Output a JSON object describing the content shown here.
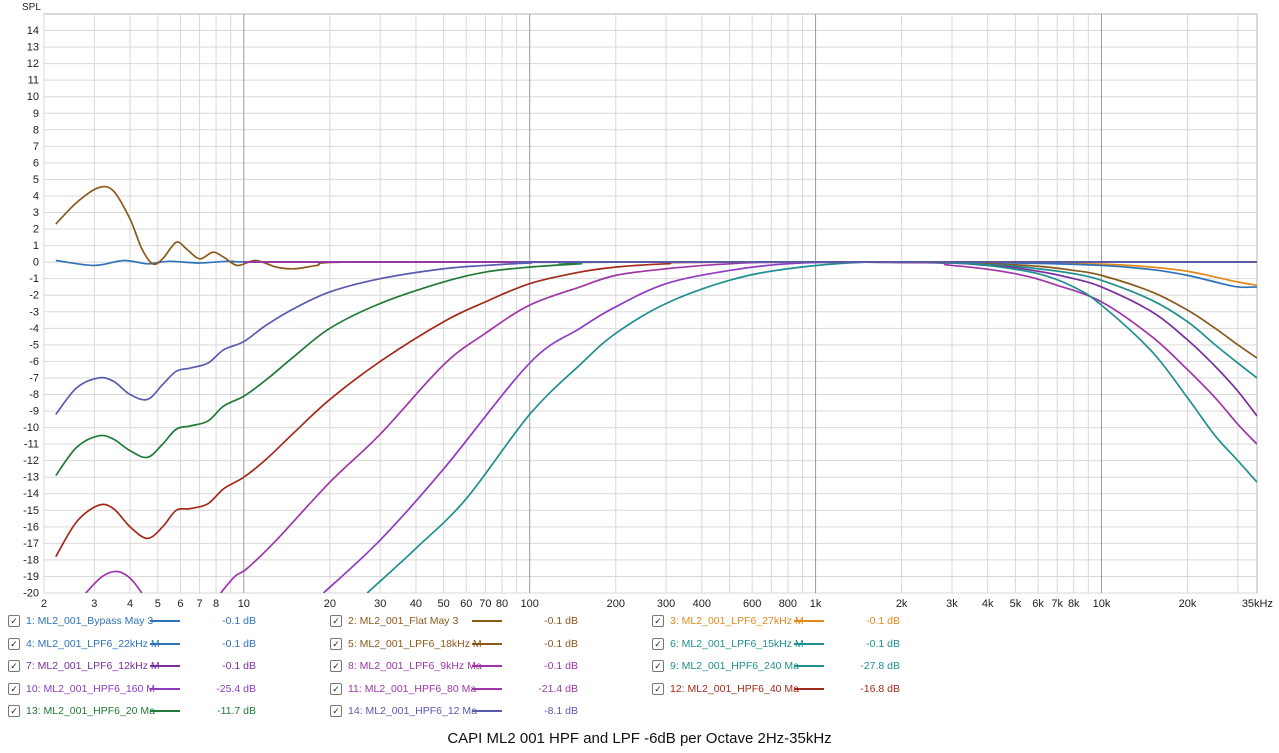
{
  "chart_data": {
    "type": "line",
    "title": "CAPI ML2 001 HPF and LPF -6dB per Octave 2Hz-35kHz",
    "ylabel": "SPL",
    "xlabel": "",
    "xscale": "log",
    "xlim": [
      2,
      35000
    ],
    "ylim": [
      -20,
      15
    ],
    "grid": true,
    "legend_placement": "bottom",
    "y_ticks": [
      "14",
      "13",
      "12",
      "11",
      "10",
      "9",
      "8",
      "7",
      "6",
      "5",
      "4",
      "3",
      "2",
      "1",
      "0",
      "-1",
      "-2",
      "-3",
      "-4",
      "-5",
      "-6",
      "-7",
      "-8",
      "-9",
      "-10",
      "-11",
      "-12",
      "-13",
      "-14",
      "-15",
      "-16",
      "-17",
      "-18",
      "-19",
      "-20"
    ],
    "x_ticks": [
      {
        "v": 2,
        "label": "2"
      },
      {
        "v": 3,
        "label": "3"
      },
      {
        "v": 4,
        "label": "4"
      },
      {
        "v": 5,
        "label": "5"
      },
      {
        "v": 6,
        "label": "6"
      },
      {
        "v": 7,
        "label": "7"
      },
      {
        "v": 8,
        "label": "8"
      },
      {
        "v": 10,
        "label": "10"
      },
      {
        "v": 20,
        "label": "20"
      },
      {
        "v": 30,
        "label": "30"
      },
      {
        "v": 40,
        "label": "40"
      },
      {
        "v": 50,
        "label": "50"
      },
      {
        "v": 60,
        "label": "60"
      },
      {
        "v": 70,
        "label": "70"
      },
      {
        "v": 80,
        "label": "80"
      },
      {
        "v": 100,
        "label": "100"
      },
      {
        "v": 200,
        "label": "200"
      },
      {
        "v": 300,
        "label": "300"
      },
      {
        "v": 400,
        "label": "400"
      },
      {
        "v": 600,
        "label": "600"
      },
      {
        "v": 800,
        "label": "800"
      },
      {
        "v": 1000,
        "label": "1k"
      },
      {
        "v": 2000,
        "label": "2k"
      },
      {
        "v": 3000,
        "label": "3k"
      },
      {
        "v": 4000,
        "label": "4k"
      },
      {
        "v": 5000,
        "label": "5k"
      },
      {
        "v": 6000,
        "label": "6k"
      },
      {
        "v": 7000,
        "label": "7k"
      },
      {
        "v": 8000,
        "label": "8k"
      },
      {
        "v": 10000,
        "label": "10k"
      },
      {
        "v": 20000,
        "label": "20k"
      },
      {
        "v": 35000,
        "label": "35kHz"
      }
    ],
    "series": [
      {
        "name": "1: ML2_001_Bypass May 3",
        "value_label": "-0.1 dB",
        "color": "#2f72b8",
        "points": [
          [
            2.2,
            0.1
          ],
          [
            3,
            -0.2
          ],
          [
            3.8,
            0.1
          ],
          [
            4.6,
            -0.1
          ],
          [
            5.5,
            0.05
          ],
          [
            7,
            -0.05
          ],
          [
            9,
            0.05
          ],
          [
            15,
            0
          ],
          [
            1000,
            0
          ],
          [
            35000,
            0
          ]
        ]
      },
      {
        "name": "2: ML2_001_Flat May 3",
        "value_label": "-0.1 dB",
        "color": "#8a5a1c",
        "points": [
          [
            2.2,
            2.3
          ],
          [
            2.6,
            3.6
          ],
          [
            3.1,
            4.5
          ],
          [
            3.5,
            4.3
          ],
          [
            4,
            2.6
          ],
          [
            4.4,
            0.8
          ],
          [
            4.8,
            -0.1
          ],
          [
            5.2,
            0.2
          ],
          [
            5.8,
            1.2
          ],
          [
            6.3,
            0.8
          ],
          [
            7,
            0.2
          ],
          [
            7.8,
            0.6
          ],
          [
            8.5,
            0.3
          ],
          [
            9.5,
            -0.2
          ],
          [
            11,
            0.1
          ],
          [
            13,
            -0.3
          ],
          [
            15,
            -0.4
          ],
          [
            18,
            -0.2
          ],
          [
            22,
            0
          ],
          [
            100,
            0
          ],
          [
            35000,
            0
          ]
        ]
      },
      {
        "name": "3: ML2_001_LPF6_27kHz M",
        "value_label": "-0.1 dB",
        "color": "#e08a1e",
        "points": [
          [
            10,
            0
          ],
          [
            1500,
            0
          ],
          [
            5000,
            -0.04
          ],
          [
            10000,
            -0.12
          ],
          [
            15000,
            -0.3
          ],
          [
            20000,
            -0.55
          ],
          [
            25000,
            -0.9
          ],
          [
            30000,
            -1.2
          ],
          [
            35000,
            -1.4
          ]
        ]
      },
      {
        "name": "4: ML2_001_LPF6_22kHz M",
        "value_label": "-0.1 dB",
        "color": "#2f72b8",
        "points": [
          [
            10,
            0
          ],
          [
            1500,
            0
          ],
          [
            5000,
            -0.05
          ],
          [
            10000,
            -0.2
          ],
          [
            15000,
            -0.45
          ],
          [
            20000,
            -0.8
          ],
          [
            25000,
            -1.2
          ],
          [
            30000,
            -1.5
          ],
          [
            35000,
            -1.5
          ]
        ]
      },
      {
        "name": "5: ML2_001_LPF6_18kHz M",
        "value_label": "-0.1 dB",
        "color": "#8a5a1c",
        "points": [
          [
            10,
            0
          ],
          [
            1500,
            0
          ],
          [
            4000,
            -0.1
          ],
          [
            6000,
            -0.25
          ],
          [
            8000,
            -0.5
          ],
          [
            10000,
            -0.8
          ],
          [
            15000,
            -1.8
          ],
          [
            20000,
            -2.9
          ],
          [
            25000,
            -4
          ],
          [
            30000,
            -5
          ],
          [
            35000,
            -5.8
          ]
        ]
      },
      {
        "name": "6: ML2_001_LPF6_15kHz M",
        "value_label": "-0.1 dB",
        "color": "#1f8f8f",
        "points": [
          [
            10,
            0
          ],
          [
            1500,
            0
          ],
          [
            4000,
            -0.15
          ],
          [
            6000,
            -0.4
          ],
          [
            8000,
            -0.7
          ],
          [
            10000,
            -1.1
          ],
          [
            15000,
            -2.3
          ],
          [
            20000,
            -3.6
          ],
          [
            25000,
            -5
          ],
          [
            30000,
            -6.1
          ],
          [
            35000,
            -7
          ]
        ]
      },
      {
        "name": "7: ML2_001_LPF6_12kHz M",
        "value_label": "-0.1 dB",
        "color": "#7a2f9e",
        "points": [
          [
            10,
            0
          ],
          [
            1500,
            0
          ],
          [
            4000,
            -0.2
          ],
          [
            6000,
            -0.55
          ],
          [
            8000,
            -1
          ],
          [
            10000,
            -1.5
          ],
          [
            15000,
            -3
          ],
          [
            20000,
            -4.7
          ],
          [
            25000,
            -6.3
          ],
          [
            30000,
            -7.8
          ],
          [
            35000,
            -9.3
          ]
        ]
      },
      {
        "name": "8: ML2_001_LPF6_9kHz Ma",
        "value_label": "-0.1 dB",
        "color": "#a035a8",
        "points": [
          [
            10,
            0
          ],
          [
            1500,
            0
          ],
          [
            3000,
            -0.2
          ],
          [
            5000,
            -0.7
          ],
          [
            7000,
            -1.4
          ],
          [
            10000,
            -2.4
          ],
          [
            15000,
            -4.5
          ],
          [
            20000,
            -6.5
          ],
          [
            25000,
            -8.2
          ],
          [
            30000,
            -9.8
          ],
          [
            35000,
            -11
          ]
        ]
      },
      {
        "name": "9: ML2_001_HPF6_240 Ma",
        "value_label": "-27.8 dB",
        "color": "#1f8f8f",
        "points": [
          [
            27,
            -20
          ],
          [
            40,
            -17.3
          ],
          [
            60,
            -14.3
          ],
          [
            100,
            -9.2
          ],
          [
            150,
            -6.2
          ],
          [
            200,
            -4.3
          ],
          [
            300,
            -2.5
          ],
          [
            500,
            -1.1
          ],
          [
            800,
            -0.4
          ],
          [
            1500,
            0
          ],
          [
            3000,
            -0.05
          ],
          [
            4000,
            -0.2
          ],
          [
            6000,
            -0.7
          ],
          [
            8000,
            -1.5
          ],
          [
            10000,
            -2.6
          ],
          [
            15000,
            -5.4
          ],
          [
            20000,
            -8.2
          ],
          [
            25000,
            -10.5
          ],
          [
            30000,
            -12
          ],
          [
            35000,
            -13.3
          ]
        ]
      },
      {
        "name": "10: ML2_001_HPF6_160 M",
        "value_label": "-25.4 dB",
        "color": "#8e3cc2",
        "points": [
          [
            19,
            -20
          ],
          [
            30,
            -16.8
          ],
          [
            50,
            -12.5
          ],
          [
            100,
            -6.1
          ],
          [
            150,
            -4
          ],
          [
            200,
            -2.7
          ],
          [
            300,
            -1.3
          ],
          [
            500,
            -0.5
          ],
          [
            800,
            -0.1
          ],
          [
            1500,
            0
          ],
          [
            10000,
            0
          ],
          [
            35000,
            0
          ]
        ]
      },
      {
        "name": "11: ML2_001_HPF6_80 Ma",
        "value_label": "-21.4 dB",
        "color": "#a035a8",
        "points": [
          [
            8.3,
            -20
          ],
          [
            9.3,
            -19
          ],
          [
            10.3,
            -18.5
          ],
          [
            13,
            -16.8
          ],
          [
            20,
            -13.3
          ],
          [
            30,
            -10.4
          ],
          [
            50,
            -6.2
          ],
          [
            70,
            -4.3
          ],
          [
            100,
            -2.6
          ],
          [
            150,
            -1.5
          ],
          [
            200,
            -0.8
          ],
          [
            300,
            -0.4
          ],
          [
            500,
            -0.1
          ],
          [
            1000,
            0
          ],
          [
            35000,
            0
          ]
        ]
      },
      {
        "name": "12: ML2_001_HPF6_40 Ma",
        "value_label": "-16.8 dB",
        "color": "#a32a1a",
        "points": [
          [
            2.2,
            -17.8
          ],
          [
            2.6,
            -15.7
          ],
          [
            3.1,
            -14.7
          ],
          [
            3.5,
            -14.9
          ],
          [
            4,
            -16
          ],
          [
            4.6,
            -16.7
          ],
          [
            5.2,
            -16
          ],
          [
            5.8,
            -15
          ],
          [
            6.5,
            -14.9
          ],
          [
            7.5,
            -14.6
          ],
          [
            8.5,
            -13.7
          ],
          [
            10,
            -13
          ],
          [
            12,
            -11.9
          ],
          [
            15,
            -10.3
          ],
          [
            20,
            -8.3
          ],
          [
            30,
            -6
          ],
          [
            50,
            -3.6
          ],
          [
            70,
            -2.4
          ],
          [
            100,
            -1.3
          ],
          [
            150,
            -0.6
          ],
          [
            200,
            -0.3
          ],
          [
            300,
            -0.1
          ],
          [
            500,
            0
          ],
          [
            35000,
            0
          ]
        ]
      },
      {
        "name": "13: ML2_001_HPF6_20 Ma",
        "value_label": "-11.7 dB",
        "color": "#1f7a3a",
        "points": [
          [
            2.2,
            -12.9
          ],
          [
            2.6,
            -11.2
          ],
          [
            3.1,
            -10.5
          ],
          [
            3.5,
            -10.7
          ],
          [
            4,
            -11.4
          ],
          [
            4.6,
            -11.8
          ],
          [
            5.2,
            -11
          ],
          [
            5.8,
            -10.1
          ],
          [
            6.5,
            -9.9
          ],
          [
            7.5,
            -9.6
          ],
          [
            8.5,
            -8.7
          ],
          [
            10,
            -8.1
          ],
          [
            12,
            -7.1
          ],
          [
            15,
            -5.7
          ],
          [
            20,
            -4
          ],
          [
            30,
            -2.5
          ],
          [
            50,
            -1.2
          ],
          [
            70,
            -0.6
          ],
          [
            100,
            -0.3
          ],
          [
            150,
            -0.1
          ],
          [
            200,
            0
          ],
          [
            35000,
            0
          ]
        ]
      },
      {
        "name": "14: ML2_001_HPF6_12 Ma",
        "value_label": "-8.1 dB",
        "color": "#5a5ab0",
        "points": [
          [
            2.2,
            -9.2
          ],
          [
            2.6,
            -7.6
          ],
          [
            3.1,
            -7
          ],
          [
            3.5,
            -7.2
          ],
          [
            4,
            -8
          ],
          [
            4.6,
            -8.3
          ],
          [
            5.2,
            -7.4
          ],
          [
            5.8,
            -6.6
          ],
          [
            6.5,
            -6.4
          ],
          [
            7.5,
            -6.1
          ],
          [
            8.5,
            -5.3
          ],
          [
            10,
            -4.8
          ],
          [
            12,
            -3.8
          ],
          [
            15,
            -2.8
          ],
          [
            20,
            -1.8
          ],
          [
            30,
            -1
          ],
          [
            50,
            -0.4
          ],
          [
            70,
            -0.2
          ],
          [
            100,
            -0.05
          ],
          [
            150,
            0
          ],
          [
            35000,
            0
          ]
        ]
      },
      {
        "name": "",
        "value_label": "",
        "color": "#a035a8",
        "legend": false,
        "points": [
          [
            2.8,
            -20
          ],
          [
            3.2,
            -19
          ],
          [
            3.6,
            -18.7
          ],
          [
            4,
            -19.1
          ],
          [
            4.4,
            -20
          ]
        ]
      }
    ]
  }
}
